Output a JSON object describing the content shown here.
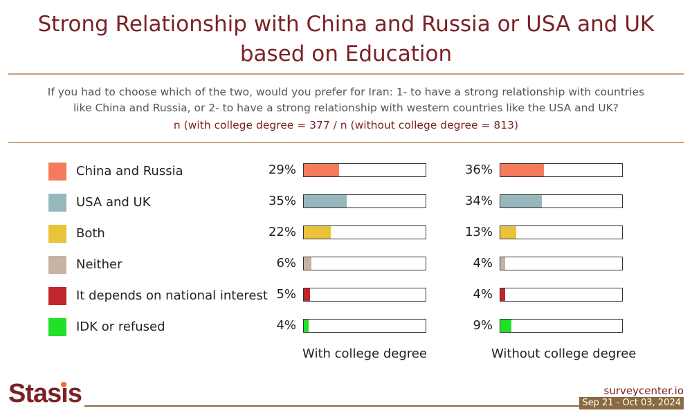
{
  "header": {
    "title_line1": "Strong Relationship with China and Russia or USA and UK",
    "title_line2": "based on Education",
    "question_line1": "If you had to choose which of the two, would you prefer for Iran: 1- to have a strong relationship with countries",
    "question_line2": "like China and Russia, or 2- to have a strong relationship with western countries like the USA and UK?",
    "sample_note": "n (with college degree = 377 / n (without college degree = 813)"
  },
  "chart_data": {
    "type": "bar",
    "categories": [
      "China and Russia",
      "USA and UK",
      "Both",
      "Neither",
      "It depends on national interest",
      "IDK or refused"
    ],
    "category_colors": [
      "#f47b5e",
      "#96b8bd",
      "#e9c43a",
      "#c6b3a3",
      "#c0272d",
      "#22e02a"
    ],
    "series": [
      {
        "name": "With college degree",
        "values": [
          29,
          35,
          22,
          6,
          5,
          4
        ],
        "labels": [
          "29%",
          "35%",
          "22%",
          "6%",
          "5%",
          "4%"
        ]
      },
      {
        "name": "Without college degree",
        "values": [
          36,
          34,
          13,
          4,
          4,
          9
        ],
        "labels": [
          "36%",
          "34%",
          "13%",
          "4%",
          "4%",
          "9%"
        ]
      }
    ],
    "xlim": [
      0,
      100
    ],
    "unit": "%"
  },
  "footer": {
    "logo": "Stasis",
    "site": "surveycenter.io",
    "date_range": "Sep 21 - Oct 03, 2024"
  },
  "colors": {
    "title": "#7a2226",
    "rule": "#c8a07c",
    "footer_rule": "#8a6a40"
  }
}
